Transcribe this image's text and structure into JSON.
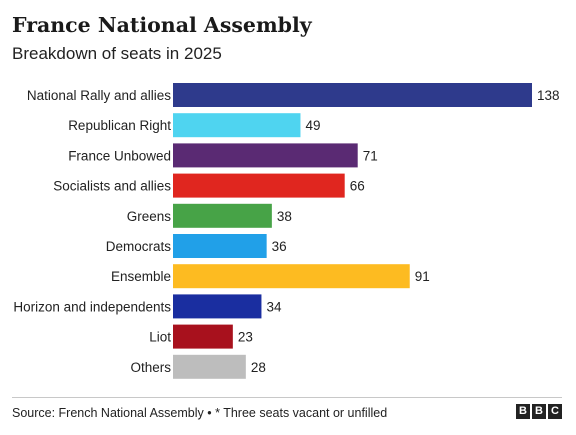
{
  "title": "France National Assembly",
  "subtitle": "Breakdown of seats in 2025",
  "footer": {
    "source": "Source: French National Assembly • * Three seats vacant or unfilled",
    "logo": [
      "B",
      "B",
      "C"
    ]
  },
  "chart_data": {
    "type": "bar",
    "orientation": "horizontal",
    "categories": [
      "National Rally and allies",
      "Republican Right",
      "France Unbowed",
      "Socialists and allies",
      "Greens",
      "Democrats",
      "Ensemble",
      "Horizon and independents",
      "Liot",
      "Others"
    ],
    "values": [
      138,
      49,
      71,
      66,
      38,
      36,
      91,
      34,
      23,
      28
    ],
    "colors": [
      "#2e3a8c",
      "#4fd4f0",
      "#5a2a73",
      "#e0261f",
      "#47a347",
      "#21a0e8",
      "#fdbb21",
      "#1a2ea0",
      "#a8111d",
      "#bdbdbd"
    ],
    "xlim": [
      0,
      138
    ],
    "grid": false,
    "legend": "none"
  }
}
